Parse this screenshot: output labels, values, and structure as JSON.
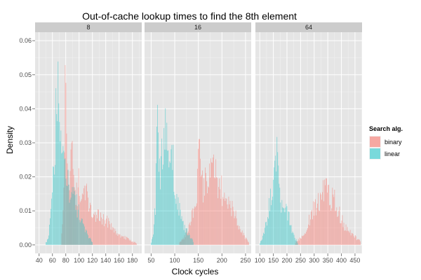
{
  "chart_data": {
    "type": "histogram",
    "title": "Out-of-cache lookup times to find the 8th element",
    "xlabel": "Clock cycles",
    "ylabel": "Density",
    "ylim": [
      -0.0025,
      0.0625
    ],
    "y_ticks": [
      "0.00",
      "0.01",
      "0.02",
      "0.03",
      "0.04",
      "0.05",
      "0.06"
    ],
    "grid": true,
    "legend": {
      "title": "Search alg.",
      "position": "right",
      "entries": [
        {
          "label": "binary",
          "color": "#f8766d"
        },
        {
          "label": "linear",
          "color": "#00bfc4"
        }
      ]
    },
    "panels": [
      {
        "strip": "8",
        "xlim": [
          34,
          194
        ],
        "x_ticks": [
          40,
          60,
          80,
          100,
          120,
          140,
          160,
          180
        ],
        "series": [
          {
            "name": "binary",
            "density": [
              [
                74,
                0.004
              ],
              [
                76,
                0.009
              ],
              [
                78,
                0.02
              ],
              [
                79,
                0.04
              ],
              [
                80,
                0.053
              ],
              [
                82,
                0.03
              ],
              [
                84,
                0.015
              ],
              [
                86,
                0.022
              ],
              [
                88,
                0.029
              ],
              [
                90,
                0.027
              ],
              [
                93,
                0.016
              ],
              [
                96,
                0.014
              ],
              [
                100,
                0.018
              ],
              [
                104,
                0.012
              ],
              [
                108,
                0.016
              ],
              [
                112,
                0.014
              ],
              [
                116,
                0.011
              ],
              [
                120,
                0.01
              ],
              [
                125,
                0.009
              ],
              [
                130,
                0.008
              ],
              [
                135,
                0.007
              ],
              [
                140,
                0.0075
              ],
              [
                145,
                0.006
              ],
              [
                150,
                0.005
              ],
              [
                155,
                0.004
              ],
              [
                160,
                0.003
              ],
              [
                165,
                0.0025
              ],
              [
                170,
                0.002
              ],
              [
                175,
                0.0015
              ],
              [
                180,
                0.001
              ],
              [
                186,
                0.0005
              ]
            ]
          },
          {
            "name": "linear",
            "density": [
              [
                50,
                0.0005
              ],
              [
                54,
                0.002
              ],
              [
                57,
                0.007
              ],
              [
                60,
                0.015
              ],
              [
                62,
                0.025
              ],
              [
                64,
                0.018
              ],
              [
                66,
                0.052
              ],
              [
                68,
                0.045
              ],
              [
                70,
                0.042
              ],
              [
                72,
                0.038
              ],
              [
                74,
                0.032
              ],
              [
                76,
                0.028
              ],
              [
                78,
                0.024
              ],
              [
                80,
                0.02
              ],
              [
                84,
                0.018
              ],
              [
                88,
                0.014
              ],
              [
                92,
                0.016
              ],
              [
                96,
                0.012
              ],
              [
                100,
                0.009
              ],
              [
                104,
                0.007
              ],
              [
                108,
                0.005
              ],
              [
                112,
                0.003
              ],
              [
                116,
                0.002
              ],
              [
                120,
                0.001
              ]
            ]
          }
        ]
      },
      {
        "strip": "16",
        "xlim": [
          36,
          262
        ],
        "x_ticks": [
          50,
          100,
          150,
          200,
          250
        ],
        "series": [
          {
            "name": "binary",
            "density": [
              [
                110,
                0.0005
              ],
              [
                120,
                0.002
              ],
              [
                130,
                0.005
              ],
              [
                140,
                0.011
              ],
              [
                148,
                0.016
              ],
              [
                150,
                0.035
              ],
              [
                154,
                0.02
              ],
              [
                160,
                0.017
              ],
              [
                170,
                0.019
              ],
              [
                180,
                0.022
              ],
              [
                185,
                0.025
              ],
              [
                190,
                0.018
              ],
              [
                200,
                0.016
              ],
              [
                210,
                0.013
              ],
              [
                220,
                0.011
              ],
              [
                230,
                0.008
              ],
              [
                240,
                0.004
              ],
              [
                250,
                0.002
              ],
              [
                258,
                0.0005
              ]
            ]
          },
          {
            "name": "linear",
            "density": [
              [
                50,
                0.0005
              ],
              [
                55,
                0.004
              ],
              [
                60,
                0.012
              ],
              [
                64,
                0.046
              ],
              [
                66,
                0.025
              ],
              [
                70,
                0.02
              ],
              [
                76,
                0.03
              ],
              [
                80,
                0.035
              ],
              [
                85,
                0.026
              ],
              [
                90,
                0.024
              ],
              [
                95,
                0.028
              ],
              [
                100,
                0.016
              ],
              [
                105,
                0.014
              ],
              [
                110,
                0.01
              ],
              [
                115,
                0.007
              ],
              [
                120,
                0.005
              ],
              [
                130,
                0.003
              ],
              [
                140,
                0.001
              ]
            ]
          }
        ]
      },
      {
        "strip": "64",
        "xlim": [
          84,
          476
        ],
        "x_ticks": [
          100,
          150,
          200,
          250,
          300,
          350,
          400,
          450
        ],
        "series": [
          {
            "name": "binary",
            "density": [
              [
                230,
                0.0005
              ],
              [
                250,
                0.002
              ],
              [
                270,
                0.004
              ],
              [
                285,
                0.008
              ],
              [
                300,
                0.011
              ],
              [
                315,
                0.012
              ],
              [
                325,
                0.014
              ],
              [
                335,
                0.015
              ],
              [
                345,
                0.024
              ],
              [
                355,
                0.016
              ],
              [
                365,
                0.013
              ],
              [
                375,
                0.014
              ],
              [
                385,
                0.011
              ],
              [
                395,
                0.009
              ],
              [
                410,
                0.006
              ],
              [
                425,
                0.004
              ],
              [
                440,
                0.003
              ],
              [
                455,
                0.002
              ],
              [
                470,
                0.001
              ]
            ]
          },
          {
            "name": "linear",
            "density": [
              [
                100,
                0.0005
              ],
              [
                110,
                0.002
              ],
              [
                120,
                0.005
              ],
              [
                130,
                0.009
              ],
              [
                140,
                0.013
              ],
              [
                150,
                0.017
              ],
              [
                160,
                0.024
              ],
              [
                165,
                0.028
              ],
              [
                170,
                0.016
              ],
              [
                180,
                0.011
              ],
              [
                190,
                0.009
              ],
              [
                200,
                0.01
              ],
              [
                210,
                0.007
              ],
              [
                220,
                0.004
              ],
              [
                230,
                0.002
              ],
              [
                240,
                0.0005
              ]
            ]
          }
        ]
      }
    ]
  }
}
